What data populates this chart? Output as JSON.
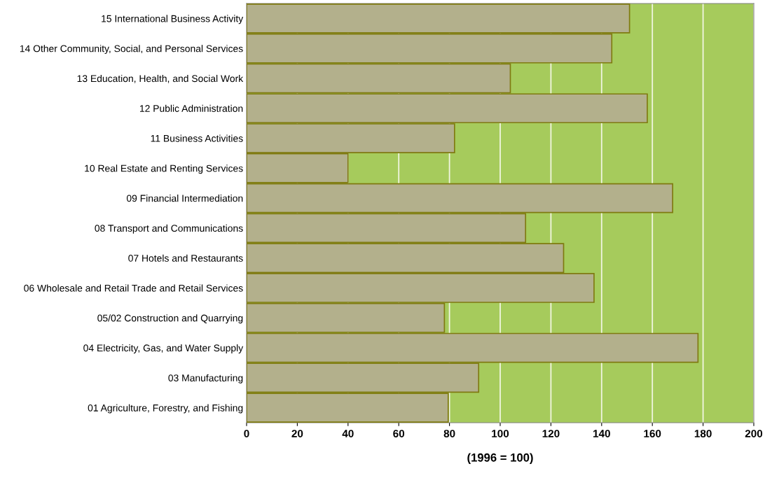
{
  "chart_data": {
    "type": "bar",
    "orientation": "horizontal",
    "xlabel": "(1996 = 100)",
    "categories": [
      "15 International Business Activity",
      "14 Other Community, Social, and Personal Services",
      "13 Education, Health, and Social Work",
      "12 Public Administration",
      "11 Business Activities",
      "10 Real Estate and Renting Services",
      "09 Financial Intermediation",
      "08 Transport and Communications",
      "07 Hotels and Restaurants",
      "06 Wholesale and Retail Trade and Retail Services",
      "05/02 Construction and Quarrying",
      "04 Electricity, Gas, and Water Supply",
      "03 Manufacturing",
      "01 Agriculture, Forestry, and Fishing"
    ],
    "values": [
      151,
      144,
      104,
      158,
      82,
      40,
      168,
      110,
      125,
      137,
      78,
      178,
      91.5,
      79.5
    ],
    "color": "#b3b08c",
    "xlim": [
      0,
      200
    ],
    "xticks": [
      0,
      20,
      40,
      60,
      80,
      100,
      120,
      140,
      160,
      180,
      200
    ],
    "bands": [
      {
        "axis": "x",
        "from": 0,
        "to": 200,
        "color": "#a6cb5c"
      }
    ],
    "grid": "x",
    "legend": false
  }
}
